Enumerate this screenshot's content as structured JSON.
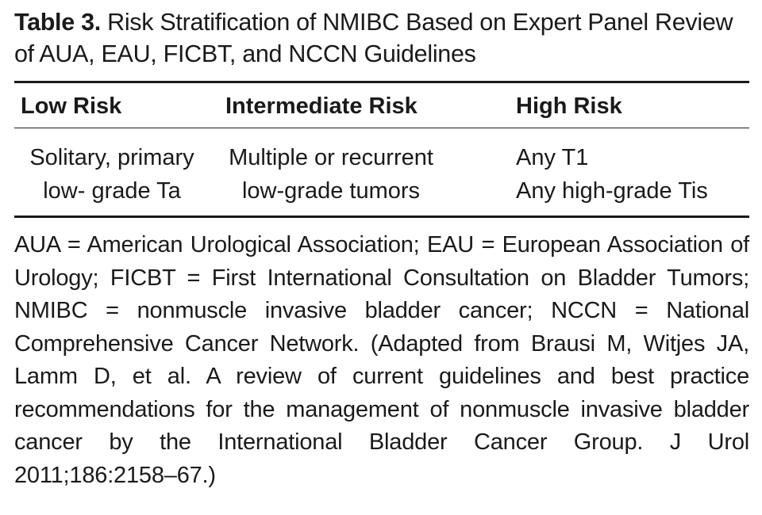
{
  "table": {
    "label": "Table 3.",
    "title": "Risk Stratification of NMIBC Based on Expert Panel Review of AUA, EAU, FICBT, and NCCN Guidelines",
    "columns": [
      "Low Risk",
      "Intermediate Risk",
      "High Risk"
    ],
    "rows": [
      {
        "low": [
          "Solitary, primary",
          "low- grade Ta"
        ],
        "intermediate": [
          "Multiple or recurrent",
          "low-grade tumors"
        ],
        "high": [
          "Any T1",
          "Any high-grade Tis"
        ]
      }
    ],
    "footnote": "AUA = American Urological Association; EAU = European Asso­ciation of Urology; FICBT = First International Consultation on Bladder Tumors; NMIBC = nonmuscle invasive bladder cancer; NCCN = National Comprehensive Cancer Network. (Adapted from Brausi M, Witjes JA, Lamm D, et al. A review of current guide­lines and best practice recommendations for the management of nonmuscle invasive bladder cancer by the International Bladder Cancer Group. J Urol 2011;186:2158–67.)"
  }
}
